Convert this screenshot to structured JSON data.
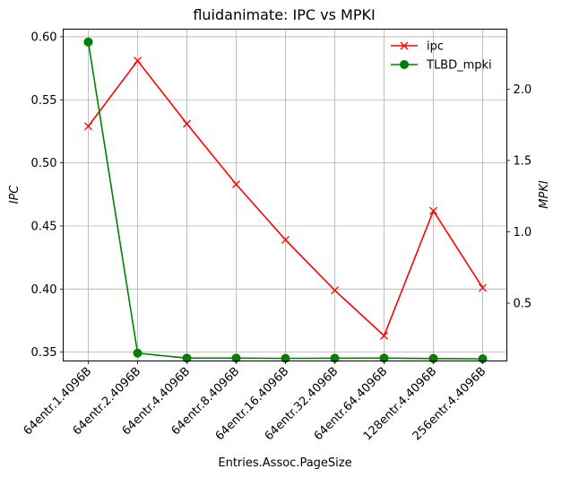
{
  "chart_data": {
    "type": "line",
    "title": "fluidanimate: IPC vs MPKI",
    "xlabel": "Entries.Assoc.PageSize",
    "ylabel_left": "IPC",
    "ylabel_right": "MPKI",
    "categories": [
      "64entr.1.4096B",
      "64entr.2.4096B",
      "64entr.4.4096B",
      "64entr.8.4096B",
      "64entr.16.4096B",
      "64entr.32.4096B",
      "64entr.64.4096B",
      "128entr.4.4096B",
      "256entr.4.4096B"
    ],
    "series": [
      {
        "name": "ipc",
        "axis": "left",
        "color": "#ff0000",
        "marker": "x",
        "values": [
          0.529,
          0.581,
          0.531,
          0.483,
          0.439,
          0.399,
          0.363,
          0.462,
          0.401
        ]
      },
      {
        "name": "TLBD_mpki",
        "axis": "right",
        "color": "#008000",
        "marker": "o",
        "values": [
          2.33,
          0.15,
          0.115,
          0.115,
          0.113,
          0.114,
          0.115,
          0.112,
          0.11
        ]
      }
    ],
    "ylim_left": [
      0.343,
      0.606
    ],
    "ylim_right": [
      0.095,
      2.42
    ],
    "yticks_left": [
      "0.35",
      "0.40",
      "0.45",
      "0.50",
      "0.55",
      "0.60"
    ],
    "yticks_right": [
      "0.5",
      "1.0",
      "1.5",
      "2.0"
    ],
    "grid": true,
    "legend_position": "upper-right"
  }
}
